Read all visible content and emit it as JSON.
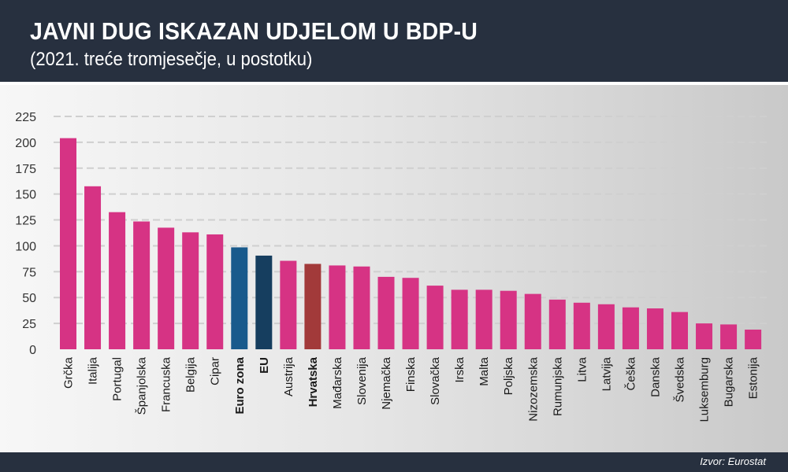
{
  "header": {
    "title": "JAVNI DUG ISKAZAN UDJELOM U BDP-U",
    "subtitle": "(2021. treće tromjesečje, u postotku)"
  },
  "footer": {
    "source": "Izvor: Eurostat"
  },
  "colors": {
    "country": "#d63384",
    "euro_zone": "#195a8c",
    "eu": "#163e5f",
    "croatia": "#a23a3a",
    "grid": "#cfcfcf",
    "axis_text": "#333333"
  },
  "chart_data": {
    "type": "bar",
    "title": "JAVNI DUG ISKAZAN UDJELOM U BDP-U",
    "subtitle": "(2021. treće tromjesečje, u postotku)",
    "xlabel": "",
    "ylabel": "",
    "ylim": [
      0,
      225
    ],
    "yticks": [
      "0",
      "25",
      "50",
      "75",
      "100",
      "125",
      "150",
      "175",
      "200",
      "225"
    ],
    "grid": true,
    "categories": [
      "Grčka",
      "Italija",
      "Portugal",
      "Španjolska",
      "Francuska",
      "Belgija",
      "Cipar",
      "Euro zona",
      "EU",
      "Austrija",
      "Hrvatska",
      "Mađarska",
      "Slovenija",
      "Njemačka",
      "Finska",
      "Slovačka",
      "Irska",
      "Malta",
      "Poljska",
      "Nizozemska",
      "Rumunjska",
      "Litva",
      "Latvija",
      "Češka",
      "Danska",
      "Švedska",
      "Luksemburg",
      "Bugarska",
      "Estonija"
    ],
    "values": [
      204.0,
      157.5,
      132.5,
      123.5,
      117.5,
      113.0,
      111.0,
      98.5,
      90.5,
      85.5,
      82.5,
      81.0,
      80.0,
      70.0,
      69.0,
      61.5,
      57.5,
      57.5,
      56.5,
      53.5,
      48.0,
      45.0,
      43.5,
      40.5,
      39.5,
      36.0,
      25.0,
      24.0,
      19.0
    ],
    "bar_colors": [
      "country",
      "country",
      "country",
      "country",
      "country",
      "country",
      "country",
      "euro_zone",
      "eu",
      "country",
      "croatia",
      "country",
      "country",
      "country",
      "country",
      "country",
      "country",
      "country",
      "country",
      "country",
      "country",
      "country",
      "country",
      "country",
      "country",
      "country",
      "country",
      "country",
      "country"
    ],
    "bold_categories": [
      "Euro zona",
      "EU",
      "Hrvatska"
    ]
  }
}
